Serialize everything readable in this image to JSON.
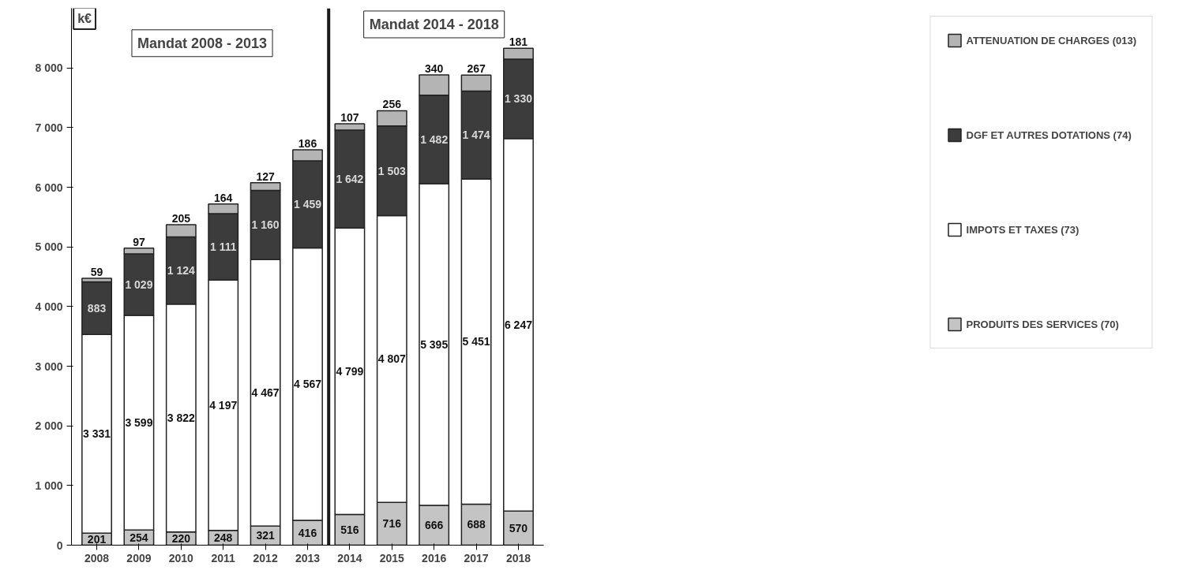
{
  "chart_data": {
    "type": "bar",
    "stacked": true,
    "ylabel": "k€",
    "categories": [
      "2008",
      "2009",
      "2010",
      "2011",
      "2012",
      "2013",
      "2014",
      "2015",
      "2016",
      "2017",
      "2018"
    ],
    "series": [
      {
        "name": "PRODUITS DES SERVICES (70)",
        "color": "#c4c4c4",
        "values": [
          201,
          254,
          220,
          248,
          321,
          416,
          516,
          716,
          666,
          688,
          570
        ]
      },
      {
        "name": "IMPOTS ET TAXES (73)",
        "color": "#ffffff",
        "values": [
          3331,
          3599,
          3822,
          4197,
          4467,
          4567,
          4799,
          4807,
          5395,
          5451,
          6247
        ]
      },
      {
        "name": "DGF ET AUTRES DOTATIONS (74)",
        "color": "#3c3c3c",
        "values": [
          883,
          1029,
          1124,
          1111,
          1160,
          1459,
          1642,
          1503,
          1482,
          1474,
          1330
        ]
      },
      {
        "name": "ATTENUATION DE CHARGES (013)",
        "color": "#b4b4b4",
        "values": [
          59,
          97,
          205,
          164,
          127,
          186,
          107,
          256,
          340,
          267,
          181
        ]
      }
    ],
    "ylim": [
      0,
      9000
    ],
    "yticks": [
      {
        "value": 0,
        "label": "0"
      },
      {
        "value": 1000,
        "label": "1 000"
      },
      {
        "value": 2000,
        "label": "2 000"
      },
      {
        "value": 3000,
        "label": "3 000"
      },
      {
        "value": 4000,
        "label": "4 000"
      },
      {
        "value": 5000,
        "label": "5 000"
      },
      {
        "value": 6000,
        "label": "6 000"
      },
      {
        "value": 7000,
        "label": "7 000"
      },
      {
        "value": 8000,
        "label": "8 000"
      }
    ],
    "data_labels": true,
    "annotations": [
      "Mandat 2008 - 2013",
      "Mandat 2014 - 2018"
    ],
    "grid": false,
    "legend": "right"
  }
}
